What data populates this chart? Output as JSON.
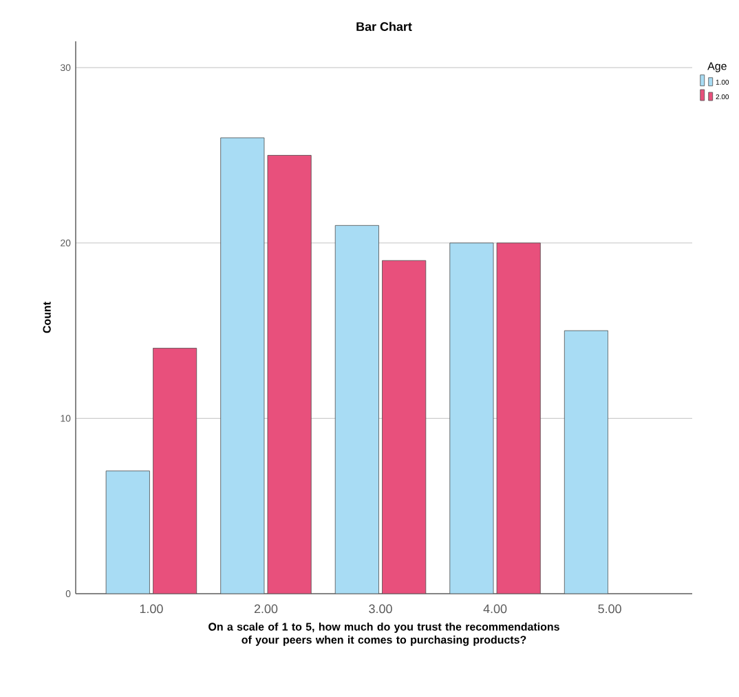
{
  "chart_data": {
    "type": "bar",
    "title": "Bar Chart",
    "xlabel": "On a scale of 1 to 5, how much do you trust the recommendations of your peers when it comes to purchasing products?",
    "ylabel": "Count",
    "legend_title": "Age",
    "categories": [
      "1.00",
      "2.00",
      "3.00",
      "4.00",
      "5.00"
    ],
    "series": [
      {
        "name": "1.00",
        "color": "#a8dcf4",
        "values": [
          7,
          26,
          21,
          20,
          15
        ]
      },
      {
        "name": "2.00",
        "color": "#e8507c",
        "values": [
          14,
          25,
          19,
          20,
          null
        ]
      }
    ],
    "ylim": [
      0,
      31.5
    ],
    "yticks": [
      0,
      10,
      20,
      30
    ],
    "grid": "y",
    "legend": "right"
  }
}
